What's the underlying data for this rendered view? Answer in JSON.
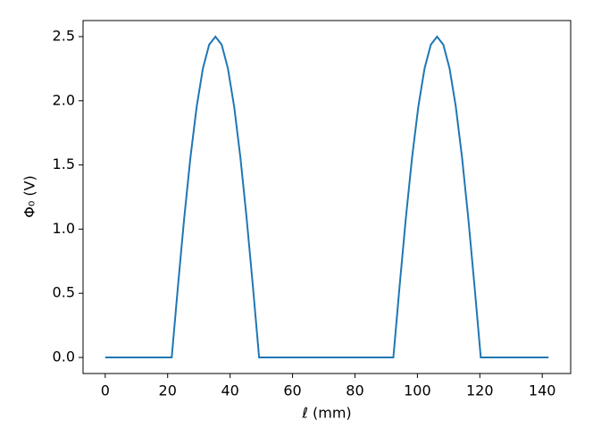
{
  "chart_data": {
    "type": "line",
    "xlabel": "ℓ (mm)",
    "ylabel": "Φ₀ (V)",
    "x": [
      0,
      21.3,
      23.3,
      25.3,
      27.3,
      29.3,
      31.3,
      33.3,
      35.3,
      37.3,
      39.3,
      41.3,
      43.3,
      45.3,
      47.3,
      49.3,
      92.3,
      94.3,
      96.3,
      98.3,
      100.3,
      102.3,
      104.3,
      106.3,
      108.3,
      110.3,
      112.3,
      114.3,
      116.3,
      118.3,
      120.3,
      142
    ],
    "series": [
      {
        "color": "#1f77b4",
        "values": [
          0,
          0,
          0.556,
          1.085,
          1.559,
          1.955,
          2.253,
          2.437,
          2.5,
          2.437,
          2.253,
          1.955,
          1.559,
          1.085,
          0.556,
          0,
          0,
          0.556,
          1.085,
          1.559,
          1.955,
          2.253,
          2.437,
          2.5,
          2.437,
          2.253,
          1.955,
          1.559,
          1.085,
          0.556,
          0,
          0
        ]
      }
    ],
    "xlim": [
      -7.1,
      149.1
    ],
    "ylim": [
      -0.125,
      2.625
    ],
    "xticks": [
      0,
      20,
      40,
      60,
      80,
      100,
      120,
      140
    ],
    "yticks": [
      {
        "value": 0,
        "label": "0.0"
      },
      0.5,
      {
        "value": 1,
        "label": "1.0"
      },
      1.5,
      {
        "value": 2,
        "label": "2.0"
      },
      2.5
    ],
    "grid": false
  }
}
